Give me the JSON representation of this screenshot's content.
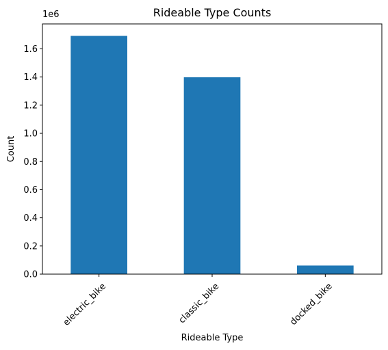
{
  "chart_data": {
    "type": "bar",
    "title": "Rideable Type Counts",
    "xlabel": "Rideable Type",
    "ylabel": "Count",
    "y_offset_label": "1e6",
    "categories": [
      "electric_bike",
      "classic_bike",
      "docked_bike"
    ],
    "values": [
      1692000,
      1398000,
      61000
    ],
    "ylim": [
      0,
      1777000
    ],
    "yticks": [
      0,
      200000,
      400000,
      600000,
      800000,
      1000000,
      1200000,
      1400000,
      1600000
    ],
    "ytick_labels": [
      "0.0",
      "0.2",
      "0.4",
      "0.6",
      "0.8",
      "1.0",
      "1.2",
      "1.4",
      "1.6"
    ],
    "bar_color": "#1f77b4",
    "grid": false,
    "legend": false,
    "xtick_rotation": 45
  }
}
